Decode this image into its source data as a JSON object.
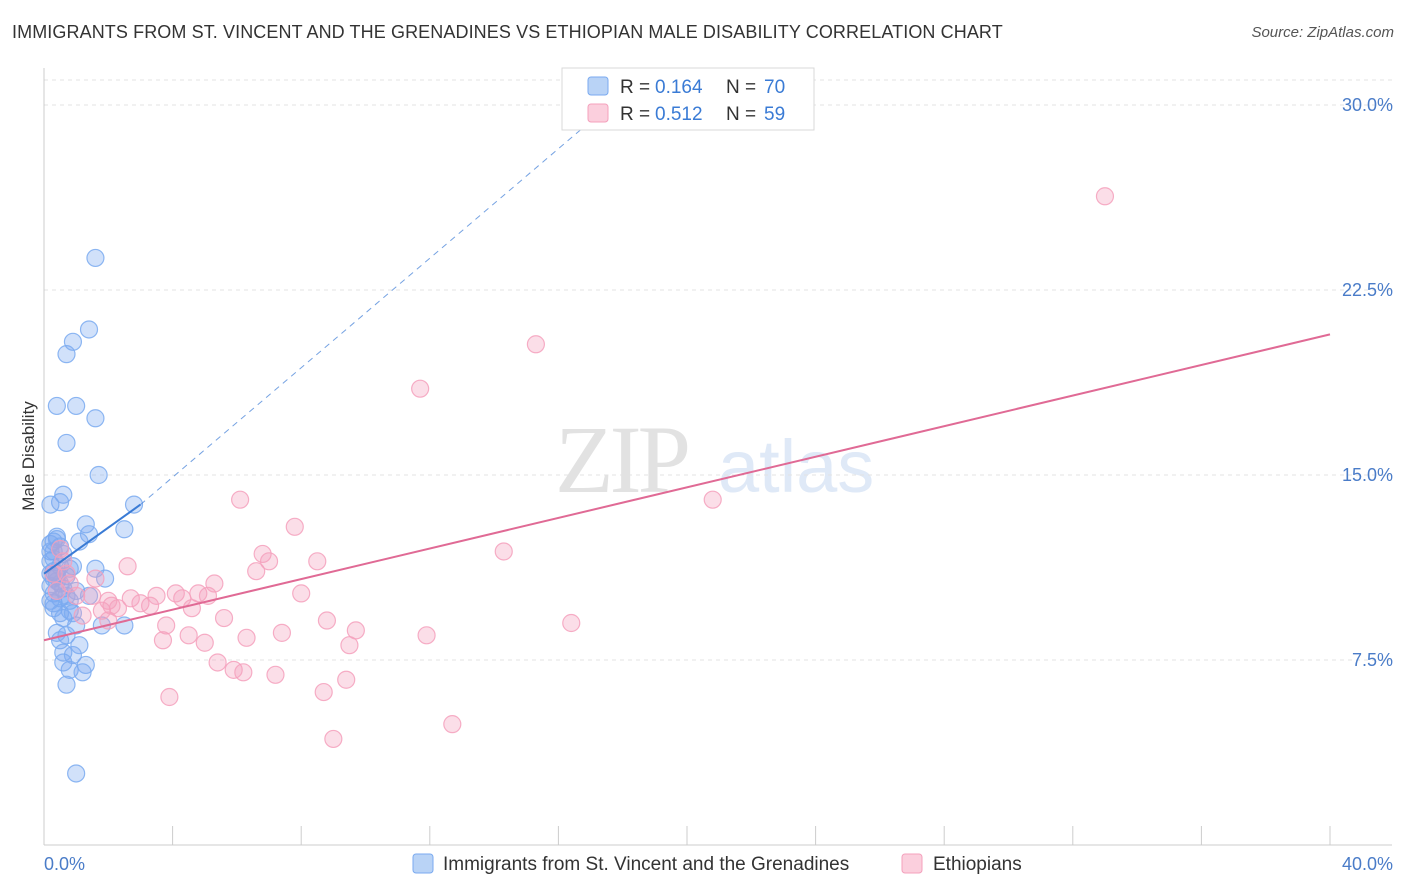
{
  "header": {
    "title": "IMMIGRANTS FROM ST. VINCENT AND THE GRENADINES VS ETHIOPIAN MALE DISABILITY CORRELATION CHART",
    "source": "Source: ZipAtlas.com"
  },
  "watermark": {
    "zip": "ZIP",
    "atlas": "atlas"
  },
  "colors": {
    "blue": "#7aaaf0",
    "blue_line": "#3a7bd5",
    "pink": "#f4a0bc",
    "pink_line": "#e06a95",
    "tick_label": "#4a7cc8"
  },
  "legend_top": {
    "rows": [
      {
        "r_label": "R =",
        "r_value": "0.164",
        "n_label": "N =",
        "n_value": "70"
      },
      {
        "r_label": "R =",
        "r_value": "0.512",
        "n_label": "N =",
        "n_value": "59"
      }
    ]
  },
  "chart_data": {
    "type": "scatter",
    "title": "IMMIGRANTS FROM ST. VINCENT AND THE GRENADINES VS ETHIOPIAN MALE DISABILITY CORRELATION CHART",
    "xlabel": "",
    "ylabel": "Male Disability",
    "xlim": [
      0,
      40
    ],
    "ylim": [
      0,
      31.5
    ],
    "x_tick_labels": [
      "0.0%",
      "40.0%"
    ],
    "y_ticks": [
      7.5,
      15.0,
      22.5,
      30.0
    ],
    "y_tick_labels": [
      "7.5%",
      "15.0%",
      "22.5%",
      "30.0%"
    ],
    "grid": "horizontal dashed",
    "legend_placement": "bottom",
    "series": [
      {
        "name": "Immigrants from St. Vincent and the Grenadines",
        "color": "#7aaaf0",
        "trend": {
          "x": [
            0,
            3.0
          ],
          "y": [
            11.0,
            13.8
          ],
          "extended_to": [
            18.5,
            31.0
          ]
        },
        "points": [
          [
            0.2,
            11.5
          ],
          [
            0.3,
            10.8
          ],
          [
            0.2,
            12.2
          ],
          [
            0.4,
            11.0
          ],
          [
            0.3,
            10.2
          ],
          [
            0.5,
            11.3
          ],
          [
            0.2,
            10.5
          ],
          [
            0.6,
            11.8
          ],
          [
            0.4,
            12.5
          ],
          [
            0.3,
            9.8
          ],
          [
            0.5,
            10.0
          ],
          [
            0.7,
            10.9
          ],
          [
            0.2,
            13.8
          ],
          [
            0.6,
            14.2
          ],
          [
            0.5,
            9.4
          ],
          [
            0.8,
            9.5
          ],
          [
            0.3,
            11.1
          ],
          [
            0.9,
            11.3
          ],
          [
            1.0,
            10.3
          ],
          [
            0.7,
            8.5
          ],
          [
            0.5,
            8.3
          ],
          [
            0.9,
            7.7
          ],
          [
            0.6,
            7.8
          ],
          [
            1.1,
            8.1
          ],
          [
            0.8,
            7.1
          ],
          [
            1.3,
            7.3
          ],
          [
            0.6,
            7.4
          ],
          [
            1.2,
            7.0
          ],
          [
            0.7,
            6.5
          ],
          [
            1.0,
            8.9
          ],
          [
            0.4,
            17.8
          ],
          [
            1.0,
            17.8
          ],
          [
            0.7,
            16.3
          ],
          [
            1.6,
            17.3
          ],
          [
            0.7,
            19.9
          ],
          [
            0.9,
            20.4
          ],
          [
            1.4,
            20.9
          ],
          [
            1.6,
            23.8
          ],
          [
            1.7,
            15.0
          ],
          [
            1.3,
            13.0
          ],
          [
            1.4,
            12.6
          ],
          [
            1.1,
            12.3
          ],
          [
            0.5,
            13.9
          ],
          [
            2.5,
            12.8
          ],
          [
            2.8,
            13.8
          ],
          [
            1.6,
            11.2
          ],
          [
            1.9,
            10.8
          ],
          [
            1.4,
            10.1
          ],
          [
            0.3,
            11.9
          ],
          [
            0.8,
            9.9
          ],
          [
            1.8,
            8.9
          ],
          [
            2.5,
            8.9
          ],
          [
            0.4,
            10.7
          ],
          [
            0.2,
            11.9
          ],
          [
            0.5,
            12.1
          ],
          [
            0.3,
            9.6
          ],
          [
            0.6,
            9.2
          ],
          [
            0.4,
            12.4
          ],
          [
            0.9,
            9.4
          ],
          [
            0.2,
            11.0
          ],
          [
            0.3,
            12.3
          ],
          [
            0.8,
            11.2
          ],
          [
            0.4,
            10.9
          ],
          [
            0.6,
            10.4
          ],
          [
            0.2,
            9.9
          ],
          [
            0.5,
            10.6
          ],
          [
            0.3,
            11.6
          ],
          [
            0.7,
            10.1
          ],
          [
            1.0,
            2.9
          ],
          [
            0.4,
            8.6
          ]
        ]
      },
      {
        "name": "Ethiopians",
        "color": "#f4a0bc",
        "trend": {
          "x": [
            0,
            40
          ],
          "y": [
            8.3,
            20.7
          ]
        },
        "points": [
          [
            0.3,
            11.0
          ],
          [
            0.5,
            12.0
          ],
          [
            0.6,
            11.5
          ],
          [
            0.8,
            10.6
          ],
          [
            0.4,
            10.3
          ],
          [
            1.0,
            10.1
          ],
          [
            0.7,
            11.0
          ],
          [
            1.2,
            9.3
          ],
          [
            1.5,
            10.1
          ],
          [
            1.6,
            10.8
          ],
          [
            1.8,
            9.5
          ],
          [
            2.0,
            9.1
          ],
          [
            2.1,
            9.7
          ],
          [
            2.3,
            9.6
          ],
          [
            2.6,
            11.3
          ],
          [
            2.7,
            10.0
          ],
          [
            3.0,
            9.8
          ],
          [
            3.3,
            9.7
          ],
          [
            3.5,
            10.1
          ],
          [
            3.7,
            8.3
          ],
          [
            3.8,
            8.9
          ],
          [
            4.1,
            10.2
          ],
          [
            4.3,
            10.0
          ],
          [
            4.5,
            8.5
          ],
          [
            4.6,
            9.6
          ],
          [
            4.8,
            10.2
          ],
          [
            5.0,
            8.2
          ],
          [
            5.1,
            10.1
          ],
          [
            5.3,
            10.6
          ],
          [
            5.4,
            7.4
          ],
          [
            5.6,
            9.2
          ],
          [
            5.9,
            7.1
          ],
          [
            6.1,
            14.0
          ],
          [
            6.2,
            7.0
          ],
          [
            6.3,
            8.4
          ],
          [
            6.6,
            11.1
          ],
          [
            6.8,
            11.8
          ],
          [
            7.0,
            11.5
          ],
          [
            7.2,
            6.9
          ],
          [
            7.4,
            8.6
          ],
          [
            7.8,
            12.9
          ],
          [
            8.0,
            10.2
          ],
          [
            8.5,
            11.5
          ],
          [
            8.7,
            6.2
          ],
          [
            8.8,
            9.1
          ],
          [
            9.0,
            4.3
          ],
          [
            9.5,
            8.1
          ],
          [
            9.7,
            8.7
          ],
          [
            11.7,
            18.5
          ],
          [
            11.9,
            8.5
          ],
          [
            12.7,
            4.9
          ],
          [
            14.3,
            11.9
          ],
          [
            15.3,
            20.3
          ],
          [
            16.4,
            9.0
          ],
          [
            20.8,
            14.0
          ],
          [
            33.0,
            26.3
          ],
          [
            3.9,
            6.0
          ],
          [
            9.4,
            6.7
          ],
          [
            2.0,
            9.9
          ]
        ]
      }
    ]
  }
}
